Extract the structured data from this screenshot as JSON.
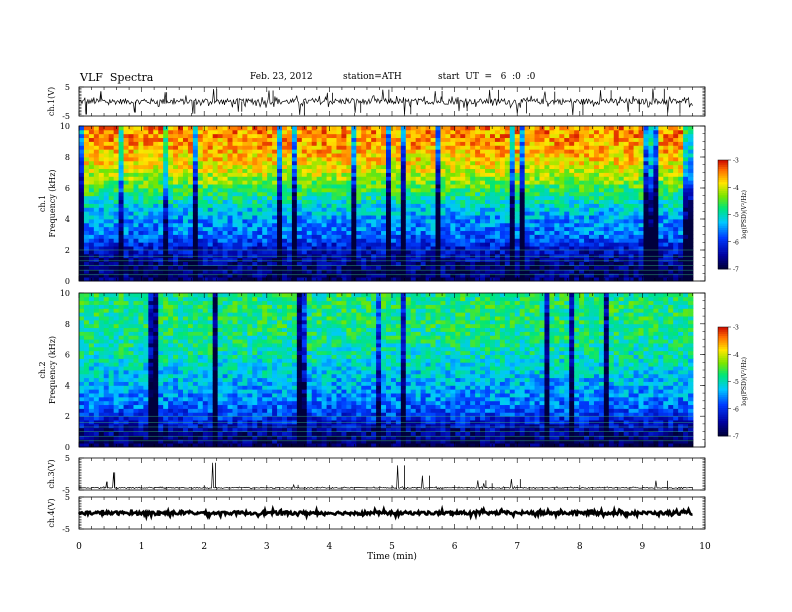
{
  "header": {
    "title": "VLF  Spectra",
    "date": "Feb. 23, 2012",
    "station": "station=ATH",
    "start": "start  UT  =   6  :0  :0"
  },
  "chart_data": [
    {
      "type": "line",
      "title": "",
      "ylabel": "ch.1(V)",
      "ylim": [
        -5,
        5
      ],
      "yticks": [
        "5",
        "-5"
      ],
      "xlim": [
        0,
        10
      ],
      "baseline": 0,
      "noise_amplitude": 1.0,
      "spikes": [
        {
          "x": 0.12,
          "y": -4.5
        },
        {
          "x": 0.35,
          "y": 3.5
        },
        {
          "x": 0.9,
          "y": -3.8
        },
        {
          "x": 1.4,
          "y": 3.2
        },
        {
          "x": 1.85,
          "y": -4.2
        },
        {
          "x": 2.2,
          "y": 4.3
        },
        {
          "x": 2.6,
          "y": -3.5
        },
        {
          "x": 3.1,
          "y": 3.8
        },
        {
          "x": 3.6,
          "y": -4.6
        },
        {
          "x": 4.05,
          "y": 3.0
        },
        {
          "x": 4.5,
          "y": -3.9
        },
        {
          "x": 4.95,
          "y": 4.1
        },
        {
          "x": 5.3,
          "y": -4.4
        },
        {
          "x": 5.8,
          "y": 3.6
        },
        {
          "x": 6.2,
          "y": -3.3
        },
        {
          "x": 6.7,
          "y": 4.0
        },
        {
          "x": 7.15,
          "y": -4.1
        },
        {
          "x": 7.6,
          "y": 3.4
        },
        {
          "x": 8.05,
          "y": -4.7
        },
        {
          "x": 8.5,
          "y": 3.9
        },
        {
          "x": 8.95,
          "y": -3.6
        },
        {
          "x": 9.35,
          "y": 4.4
        },
        {
          "x": 9.6,
          "y": -4.0
        }
      ]
    },
    {
      "type": "heatmap",
      "title": "",
      "ylabel": "ch.1\nFrequency  (kHz)",
      "ylim": [
        0,
        10
      ],
      "yticks": [
        "0",
        "2",
        "4",
        "6",
        "8",
        "10"
      ],
      "xlim": [
        0,
        9.8
      ],
      "colorbar": {
        "label": "log(PSD)(V²/Hz)",
        "ticks": [
          "-3",
          "-4",
          "-5",
          "-6",
          "-7"
        ],
        "range": [
          -7,
          -3
        ]
      },
      "psd_profile": [
        {
          "khz": 0.0,
          "log_psd": -6.8
        },
        {
          "khz": 1.0,
          "log_psd": -6.7
        },
        {
          "khz": 2.0,
          "log_psd": -6.3
        },
        {
          "khz": 3.0,
          "log_psd": -5.7
        },
        {
          "khz": 4.0,
          "log_psd": -5.5
        },
        {
          "khz": 5.0,
          "log_psd": -5.1
        },
        {
          "khz": 6.0,
          "log_psd": -4.6
        },
        {
          "khz": 7.0,
          "log_psd": -4.1
        },
        {
          "khz": 8.0,
          "log_psd": -3.8
        },
        {
          "khz": 9.0,
          "log_psd": -3.6
        },
        {
          "khz": 10.0,
          "log_psd": -3.5
        }
      ]
    },
    {
      "type": "heatmap",
      "title": "",
      "ylabel": "ch.2\nFrequency  (kHz)",
      "ylim": [
        0,
        10
      ],
      "yticks": [
        "0",
        "2",
        "4",
        "6",
        "8",
        "10"
      ],
      "xlim": [
        0,
        9.8
      ],
      "colorbar": {
        "label": "log(PSD)(V²/Hz)",
        "ticks": [
          "-3",
          "-4",
          "-5",
          "-6",
          "-7"
        ],
        "range": [
          -7,
          -3
        ]
      },
      "psd_profile": [
        {
          "khz": 0.0,
          "log_psd": -6.9
        },
        {
          "khz": 1.0,
          "log_psd": -6.6
        },
        {
          "khz": 2.0,
          "log_psd": -6.0
        },
        {
          "khz": 3.0,
          "log_psd": -5.6
        },
        {
          "khz": 4.0,
          "log_psd": -5.4
        },
        {
          "khz": 5.0,
          "log_psd": -5.2
        },
        {
          "khz": 6.0,
          "log_psd": -5.0
        },
        {
          "khz": 7.0,
          "log_psd": -4.9
        },
        {
          "khz": 8.0,
          "log_psd": -4.8
        },
        {
          "khz": 9.0,
          "log_psd": -4.8
        },
        {
          "khz": 10.0,
          "log_psd": -4.8
        }
      ]
    },
    {
      "type": "line",
      "title": "",
      "ylabel": "ch.3(V)",
      "ylim": [
        -5,
        5
      ],
      "yticks": [
        "5",
        "-5"
      ],
      "xlim": [
        0,
        10
      ],
      "baseline": -4.3,
      "noise_amplitude": 0.15,
      "spikes": [
        {
          "x": 0.45,
          "y": -2.4
        },
        {
          "x": 0.57,
          "y": 0.5
        },
        {
          "x": 2.18,
          "y": 3.5
        },
        {
          "x": 3.5,
          "y": -3.4
        },
        {
          "x": 5.2,
          "y": 2.7
        },
        {
          "x": 5.6,
          "y": -0.5
        },
        {
          "x": 6.5,
          "y": -2.0
        },
        {
          "x": 6.6,
          "y": -2.9
        },
        {
          "x": 7.05,
          "y": -1.6
        },
        {
          "x": 9.4,
          "y": -2.1
        }
      ]
    },
    {
      "type": "line",
      "title": "",
      "ylabel": "ch.4(V)",
      "xlabel": "Time  (min)",
      "ylim": [
        -5,
        5
      ],
      "yticks": [
        "5",
        "-5"
      ],
      "xlim": [
        0,
        10
      ],
      "xticks": [
        "0",
        "1",
        "2",
        "3",
        "4",
        "5",
        "6",
        "7",
        "8",
        "9",
        "10"
      ],
      "baseline": 0,
      "noise_amplitude": 0.5,
      "spikes": []
    }
  ]
}
